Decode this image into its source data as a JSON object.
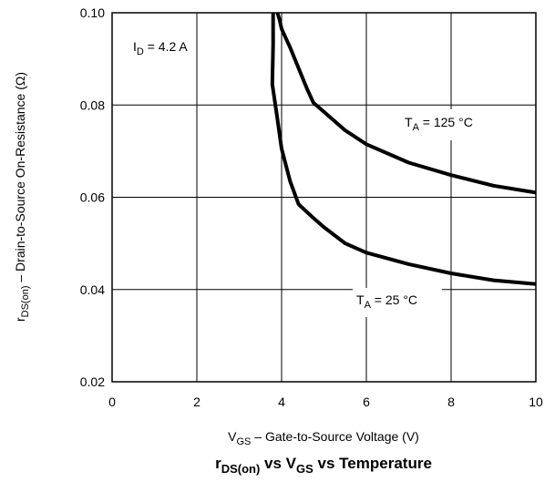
{
  "chart_data": {
    "type": "line",
    "title": {
      "main": "r",
      "sub1": "DS(on)",
      "mid1": " vs V",
      "sub2": "GS",
      "mid2": " vs Temperature"
    },
    "xlabel": {
      "main": "V",
      "sub": "GS",
      "rest": " – Gate-to-Source Voltage (V)"
    },
    "ylabel": {
      "main": "r",
      "sub": "DS(on)",
      "rest": " – Drain-to-Source On-Resistance (Ω)"
    },
    "xlim": [
      0,
      10
    ],
    "ylim": [
      0.02,
      0.1
    ],
    "x_ticks": [
      0,
      2,
      4,
      6,
      8,
      10
    ],
    "x_tick_labels": [
      "0",
      "2",
      "4",
      "6",
      "8",
      "10"
    ],
    "y_ticks": [
      0.02,
      0.04,
      0.06,
      0.08,
      0.1
    ],
    "y_tick_labels": [
      "0.02",
      "0.04",
      "0.06",
      "0.08",
      "0.10"
    ],
    "grid": true,
    "condition_label": {
      "main": "I",
      "sub": "D",
      "rest": " = 4.2 A"
    },
    "series": [
      {
        "label": {
          "main": "T",
          "sub": "A",
          "rest": " = 125 °C"
        },
        "x": [
          3.9,
          3.95,
          4.0,
          4.1,
          4.2,
          4.4,
          4.6,
          4.75,
          5.0,
          5.5,
          6.0,
          7.0,
          8.0,
          9.0,
          10.0
        ],
        "y": [
          0.1,
          0.0985,
          0.0965,
          0.0945,
          0.0925,
          0.088,
          0.0835,
          0.0805,
          0.0785,
          0.0745,
          0.0715,
          0.0675,
          0.0648,
          0.0625,
          0.061
        ]
      },
      {
        "label": {
          "main": "T",
          "sub": "A",
          "rest": " = 25 °C"
        },
        "x": [
          3.8,
          3.8,
          3.78,
          3.9,
          4.0,
          4.2,
          4.4,
          4.75,
          5.0,
          5.5,
          6.0,
          7.0,
          8.0,
          9.0,
          10.0
        ],
        "y": [
          0.1,
          0.093,
          0.0845,
          0.077,
          0.0705,
          0.0635,
          0.0585,
          0.0555,
          0.0535,
          0.05,
          0.048,
          0.0455,
          0.0435,
          0.042,
          0.0412
        ]
      }
    ],
    "colors": {
      "line": "#000000",
      "grid": "#000000"
    }
  }
}
